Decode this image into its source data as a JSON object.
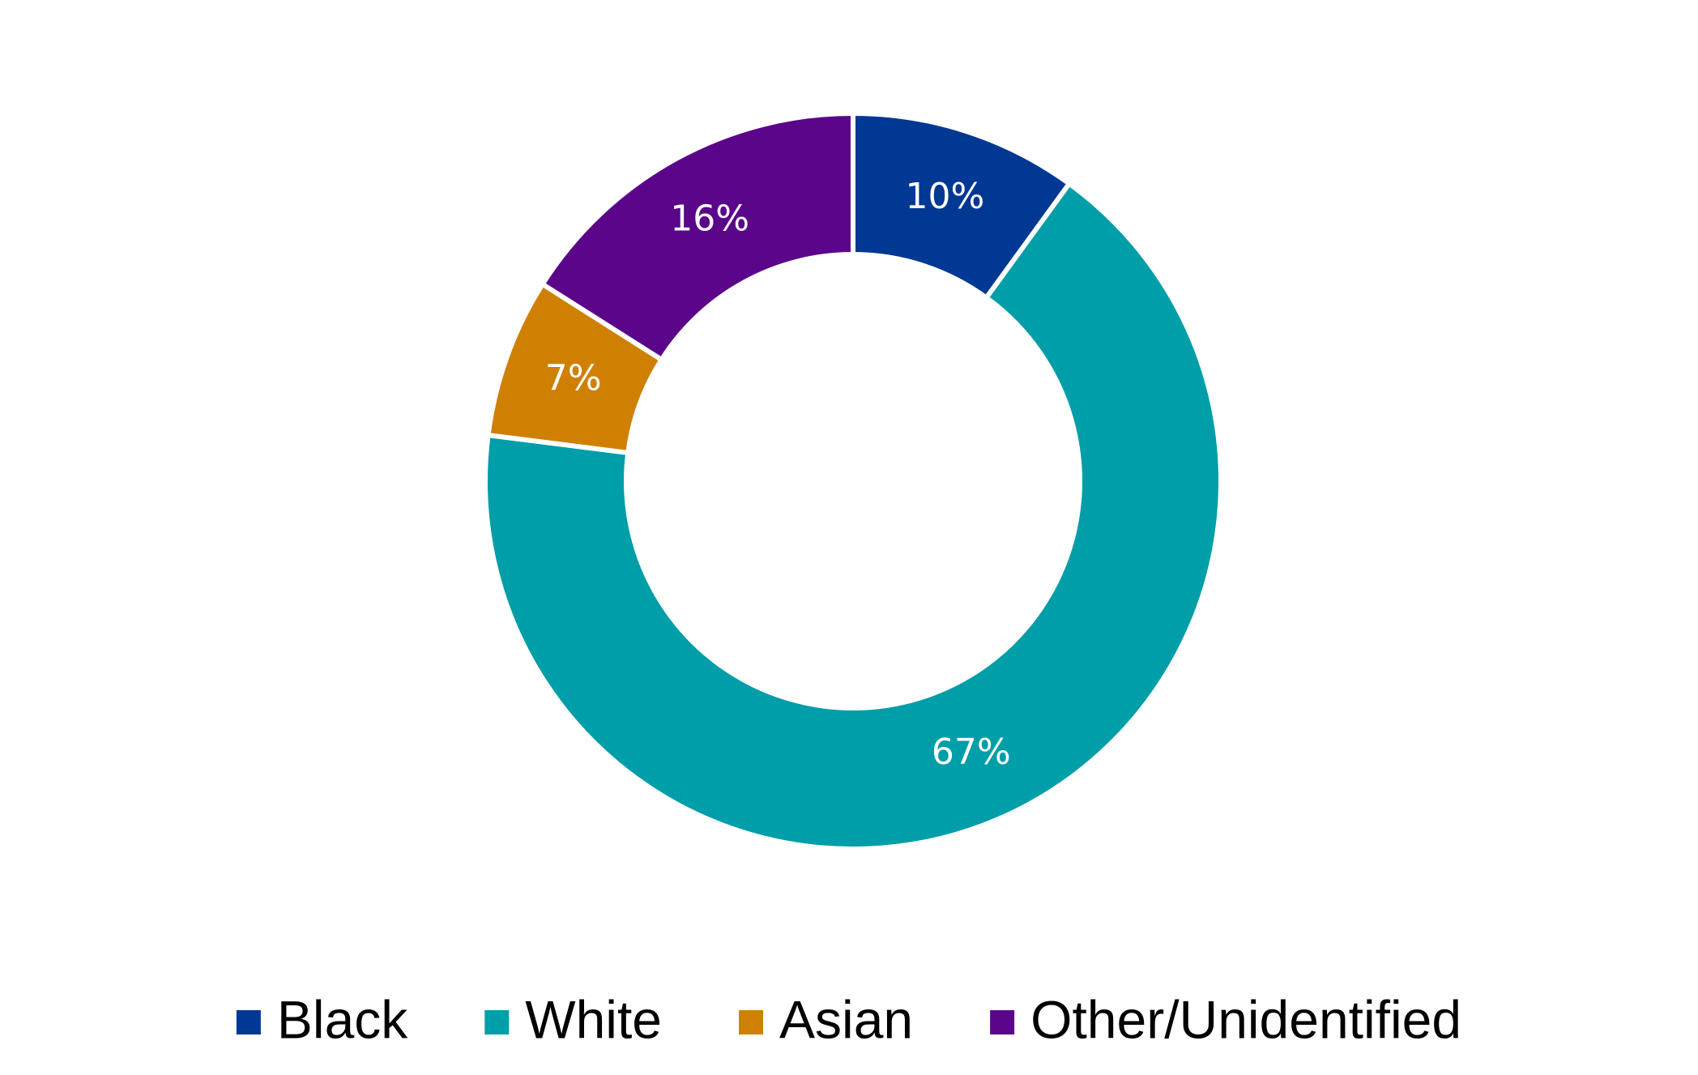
{
  "chart_data": {
    "type": "donut",
    "categories": [
      "Black",
      "White",
      "Asian",
      "Other/Unidentified"
    ],
    "values": [
      10,
      67,
      7,
      16
    ],
    "value_labels": [
      "10%",
      "67%",
      "7%",
      "16%"
    ],
    "colors": [
      "#003893",
      "#009ea8",
      "#d08000",
      "#5b068a"
    ],
    "legend": "bottom"
  }
}
